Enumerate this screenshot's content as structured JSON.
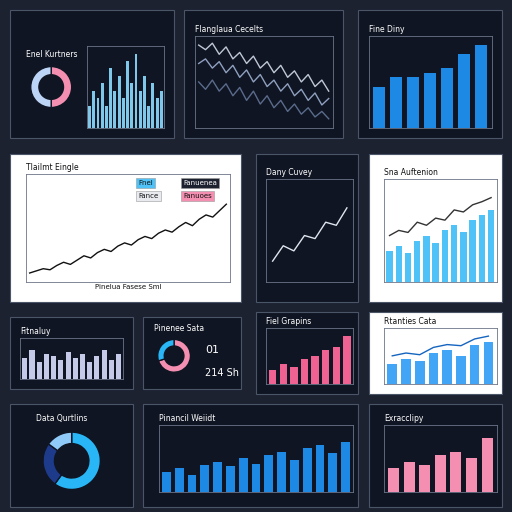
{
  "chart_data": [
    {
      "type": "pie",
      "title": "Enel Kurtners",
      "values": [
        50,
        50
      ],
      "colors": [
        "#f48fb1",
        "#bcd4f5"
      ]
    },
    {
      "type": "bar",
      "categories": [
        null,
        null,
        null,
        null,
        null,
        null,
        null,
        null,
        null,
        null,
        null,
        null,
        null,
        null,
        null,
        null,
        null,
        null
      ],
      "series": [
        {
          "type": "bar",
          "color": "#7fc8ea",
          "values": [
            3,
            5,
            4,
            6,
            3,
            8,
            5,
            7,
            4,
            9,
            6,
            10,
            5,
            7,
            3,
            6,
            4,
            5
          ]
        }
      ],
      "ylim": [
        0,
        11
      ],
      "yticks": [],
      "tick_labels": false
    },
    {
      "type": "line",
      "title": "Flanglaua Cecelts",
      "categories": [
        null,
        null,
        null,
        null,
        null,
        null,
        null,
        null,
        null,
        null,
        null,
        null,
        null,
        null,
        null,
        null,
        null,
        null,
        null,
        null
      ],
      "series": [
        {
          "type": "line",
          "color": "#c0c8d8",
          "values": [
            9,
            8.5,
            9.2,
            8,
            8.8,
            7.5,
            8.2,
            7,
            7.8,
            6.5,
            7.2,
            6,
            6.8,
            5.5,
            6.2,
            5,
            5.8,
            4.5,
            5.2,
            4
          ]
        },
        {
          "type": "line",
          "color": "#8fa0c0",
          "values": [
            7,
            7.5,
            6.5,
            7.2,
            6,
            6.8,
            5.5,
            6.3,
            5,
            5.8,
            4.5,
            5.2,
            4,
            4.8,
            3.5,
            4.2,
            3,
            3.8,
            2.5,
            3.2
          ]
        },
        {
          "type": "line",
          "color": "#5a6b8c",
          "values": [
            5,
            4.2,
            5.2,
            4,
            4.8,
            3.5,
            4.4,
            3,
            4,
            2.6,
            3.5,
            2.2,
            3,
            1.8,
            2.6,
            1.5,
            2.2,
            1.2,
            1.8,
            1
          ]
        }
      ],
      "ylim": [
        0,
        10
      ],
      "yticks": [],
      "tick_labels": false
    },
    {
      "type": "bar",
      "title": "Fine Diny",
      "categories": [
        null,
        null,
        null,
        null,
        null,
        null,
        null
      ],
      "series": [
        {
          "type": "bar",
          "color": "#1e88e5",
          "values": [
            45,
            55,
            55,
            60,
            65,
            80,
            90
          ]
        }
      ],
      "ylim": [
        0,
        100
      ],
      "yticks": [],
      "tick_labels": false
    },
    {
      "type": "line",
      "title": "Tlailmt Eingle",
      "x_label": "Pinelua Fasese Sml",
      "annotations": [
        "Fnel",
        "Fanuenea",
        "Fance",
        "Fanuoes"
      ],
      "categories": [
        null,
        null,
        null,
        null,
        null,
        null,
        null,
        null,
        null,
        null,
        null,
        null,
        null,
        null,
        null,
        null,
        null,
        null,
        null,
        null,
        null,
        null,
        null,
        null,
        null,
        null,
        null,
        null,
        null,
        null
      ],
      "series": [
        {
          "type": "line",
          "color": "#111111",
          "values": [
            8,
            10,
            12,
            11,
            15,
            18,
            16,
            20,
            24,
            22,
            27,
            30,
            28,
            33,
            36,
            34,
            39,
            42,
            40,
            45,
            48,
            46,
            51,
            55,
            52,
            58,
            62,
            60,
            66,
            72
          ]
        }
      ],
      "ylim": [
        0,
        100
      ],
      "yticks": [],
      "tick_labels": false
    },
    {
      "type": "line",
      "title": "Dany Cuvey",
      "categories": [
        null,
        null,
        null,
        null,
        null,
        null,
        null,
        null
      ],
      "series": [
        {
          "type": "line",
          "color": "#e0e6f0",
          "marker": "none",
          "values": [
            20,
            35,
            30,
            45,
            42,
            58,
            55,
            72
          ]
        }
      ],
      "ylim": [
        0,
        100
      ],
      "yticks": [],
      "tick_labels": false
    },
    {
      "type": "bar",
      "title": "Sna Auftenion",
      "categories": [
        null,
        null,
        null,
        null,
        null,
        null,
        null,
        null,
        null,
        null,
        null,
        null
      ],
      "series": [
        {
          "type": "bar",
          "color": "#4fc3f7",
          "values": [
            30,
            35,
            28,
            40,
            45,
            38,
            50,
            55,
            48,
            60,
            65,
            70
          ]
        },
        {
          "type": "line",
          "color": "#333333",
          "values": [
            45,
            50,
            48,
            58,
            55,
            62,
            60,
            70,
            68,
            75,
            78,
            82
          ]
        }
      ],
      "ylim": [
        0,
        100
      ],
      "yticks": [],
      "tick_labels": false
    },
    {
      "type": "bar",
      "title": "Fitnaluy",
      "categories": [
        null,
        null,
        null,
        null,
        null,
        null,
        null,
        null,
        null,
        null,
        null,
        null,
        null,
        null
      ],
      "series": [
        {
          "type": "bar",
          "color": "#c5cae9",
          "values": [
            50,
            70,
            40,
            60,
            55,
            45,
            65,
            50,
            60,
            40,
            55,
            70,
            45,
            60
          ]
        }
      ],
      "ylim": [
        0,
        100
      ],
      "yticks": [],
      "tick_labels": false
    },
    {
      "type": "pie",
      "title": "Pinenee Sata",
      "values": [
        70,
        30
      ],
      "colors": [
        "#f48fb1",
        "#29b6f6"
      ],
      "annotations": [
        "01",
        "214 Sh"
      ]
    },
    {
      "type": "bar",
      "title": "Fiel Grapins",
      "categories": [
        null,
        null,
        null,
        null,
        null,
        null,
        null,
        null
      ],
      "series": [
        {
          "type": "bar",
          "color": "#f06292",
          "values": [
            25,
            35,
            30,
            45,
            50,
            60,
            65,
            85
          ]
        }
      ],
      "ylim": [
        0,
        100
      ],
      "yticks": [],
      "tick_labels": false
    },
    {
      "type": "bar",
      "title": "Rtanties Cata",
      "categories": [
        null,
        null,
        null,
        null,
        null,
        null,
        null,
        null
      ],
      "series": [
        {
          "type": "bar",
          "color": "#42a5f5",
          "values": [
            35,
            45,
            40,
            55,
            60,
            50,
            70,
            75
          ]
        },
        {
          "type": "line",
          "color": "#1565c0",
          "values": [
            50,
            55,
            52,
            65,
            70,
            68,
            80,
            85
          ]
        }
      ],
      "ylim": [
        0,
        100
      ],
      "yticks": [],
      "tick_labels": false
    },
    {
      "type": "pie",
      "title": "Data Qurtlins",
      "values": [
        60,
        25,
        15
      ],
      "colors": [
        "#29b6f6",
        "#1e3a8a",
        "#90caf9"
      ]
    },
    {
      "type": "bar",
      "title": "Pinancil Weiidt",
      "categories": [
        null,
        null,
        null,
        null,
        null,
        null,
        null,
        null,
        null,
        null,
        null,
        null,
        null,
        null,
        null
      ],
      "series": [
        {
          "type": "bar",
          "color": "#1e88e5",
          "values": [
            30,
            35,
            25,
            40,
            45,
            38,
            50,
            42,
            55,
            60,
            48,
            65,
            70,
            58,
            75
          ]
        }
      ],
      "ylim": [
        0,
        100
      ],
      "yticks": [],
      "tick_labels": false
    },
    {
      "type": "bar",
      "title": "Exracclipy",
      "categories": [
        null,
        null,
        null,
        null,
        null,
        null,
        null
      ],
      "series": [
        {
          "type": "bar",
          "color": "#f48fb1",
          "values": [
            35,
            45,
            40,
            55,
            60,
            50,
            80
          ]
        }
      ],
      "ylim": [
        0,
        100
      ],
      "yticks": [],
      "tick_labels": false
    }
  ]
}
